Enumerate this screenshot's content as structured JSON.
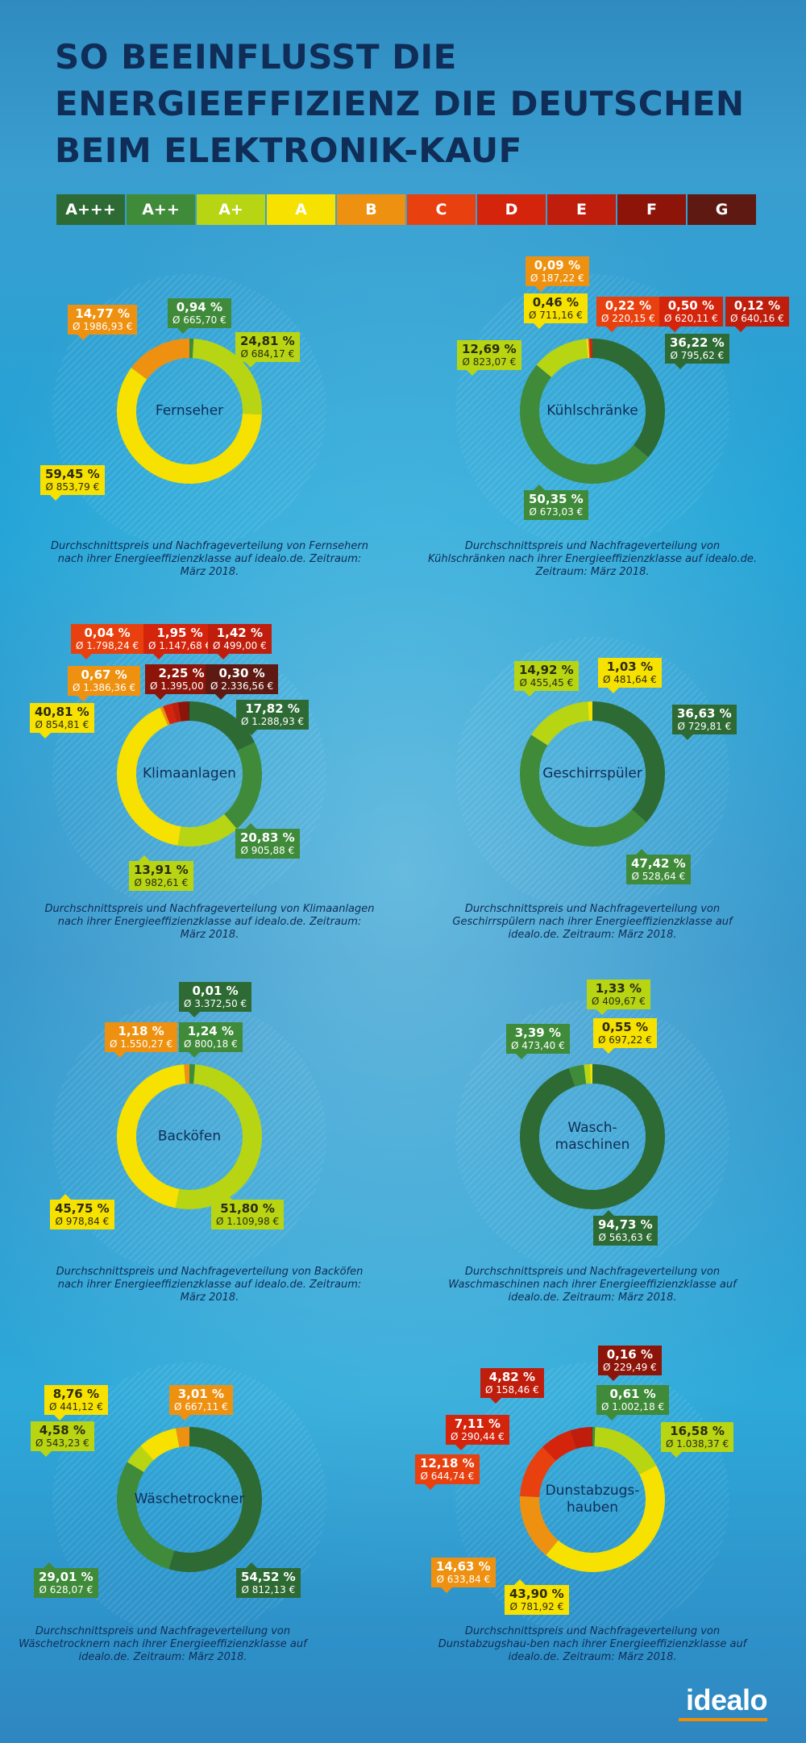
{
  "title_lines": [
    "SO BEEINFLUSST DIE",
    "ENERGIEEFFIZIENZ DIE DEUTSCHEN",
    "BEIM ELEKTRONIK-KAUF"
  ],
  "class_colors": {
    "A+++": "#2e6b34",
    "A++": "#3f8b3a",
    "A+": "#b7d513",
    "A": "#f6e100",
    "B": "#ef9110",
    "C": "#e8410f",
    "D": "#d5240c",
    "E": "#c01e0c",
    "F": "#8d1409",
    "G": "#5e1a12"
  },
  "scale": [
    "A+++",
    "A++",
    "A+",
    "A",
    "B",
    "C",
    "D",
    "E",
    "F",
    "G"
  ],
  "logo": "idealo",
  "chart_data": [
    {
      "type": "pie",
      "title": "Fernseher",
      "caption": "Durchschnittspreis und Nachfrageverteilung von Fernsehern nach ihrer Energieeffizienzklasse auf idealo.de. Zeitraum: März 2018.",
      "slices": [
        {
          "class": "A++",
          "share": "0,94 %",
          "value": 0.94,
          "price": "Ø 665,70 €"
        },
        {
          "class": "A+",
          "share": "24,81 %",
          "value": 24.81,
          "price": "Ø 684,17 €"
        },
        {
          "class": "A",
          "share": "59,45 %",
          "value": 59.45,
          "price": "Ø 853,79 €"
        },
        {
          "class": "B",
          "share": "14,77 %",
          "value": 14.77,
          "price": "Ø 1986,93 €"
        }
      ]
    },
    {
      "type": "pie",
      "title": "Kühlschränke",
      "caption": "Durchschnittspreis und Nachfrageverteilung von Kühlschränken nach ihrer Energieeffizienzklasse auf idealo.de. Zeitraum: März 2018.",
      "slices": [
        {
          "class": "A+++",
          "share": "36,22 %",
          "value": 36.22,
          "price": "Ø 795,62 €"
        },
        {
          "class": "A++",
          "share": "50,35 %",
          "value": 50.35,
          "price": "Ø 673,03 €"
        },
        {
          "class": "A+",
          "share": "12,69 %",
          "value": 12.69,
          "price": "Ø 823,07 €"
        },
        {
          "class": "A",
          "share": "0,46 %",
          "value": 0.46,
          "price": "Ø 711,16 €"
        },
        {
          "class": "B",
          "share": "0,09 %",
          "value": 0.09,
          "price": "Ø 187,22 €"
        },
        {
          "class": "C",
          "share": "0,22 %",
          "value": 0.22,
          "price": "Ø 220,15 €"
        },
        {
          "class": "D",
          "share": "0,50 %",
          "value": 0.5,
          "price": "Ø 620,11 €"
        },
        {
          "class": "E",
          "share": "0,12 %",
          "value": 0.12,
          "price": "Ø 640,16 €"
        }
      ]
    },
    {
      "type": "pie",
      "title": "Klimaanlagen",
      "caption": "Durchschnittspreis und Nachfrageverteilung von Klimaanlagen nach ihrer Energieeffizienzklasse auf idealo.de. Zeitraum: März 2018.",
      "slices": [
        {
          "class": "A+++",
          "share": "17,82 %",
          "value": 17.82,
          "price": "Ø 1.288,93 €"
        },
        {
          "class": "A++",
          "share": "20,83 %",
          "value": 20.83,
          "price": "Ø 905,88 €"
        },
        {
          "class": "A+",
          "share": "13,91 %",
          "value": 13.91,
          "price": "Ø 982,61 €"
        },
        {
          "class": "A",
          "share": "40,81 %",
          "value": 40.81,
          "price": "Ø 854,81 €"
        },
        {
          "class": "B",
          "share": "0,67 %",
          "value": 0.67,
          "price": "Ø 1.386,36 €"
        },
        {
          "class": "C",
          "share": "0,04 %",
          "value": 0.04,
          "price": "Ø 1.798,24 €"
        },
        {
          "class": "D",
          "share": "1,95 %",
          "value": 1.95,
          "price": "Ø 1.147,68 €"
        },
        {
          "class": "E",
          "share": "1,42 %",
          "value": 1.42,
          "price": "Ø 499,00 €"
        },
        {
          "class": "F",
          "share": "2,25 %",
          "value": 2.25,
          "price": "Ø 1.395,00 €"
        },
        {
          "class": "G",
          "share": "0,30 %",
          "value": 0.3,
          "price": "Ø 2.336,56 €"
        }
      ]
    },
    {
      "type": "pie",
      "title": "Geschirrspüler",
      "caption": "Durchschnittspreis und Nachfrageverteilung von Geschirrspülern nach ihrer Energieeffizienzklasse auf idealo.de. Zeitraum: März 2018.",
      "slices": [
        {
          "class": "A+++",
          "share": "36,63 %",
          "value": 36.63,
          "price": "Ø 729,81 €"
        },
        {
          "class": "A++",
          "share": "47,42 %",
          "value": 47.42,
          "price": "Ø 528,64 €"
        },
        {
          "class": "A+",
          "share": "14,92 %",
          "value": 14.92,
          "price": "Ø 455,45 €"
        },
        {
          "class": "A",
          "share": "1,03 %",
          "value": 1.03,
          "price": "Ø 481,64 €"
        }
      ]
    },
    {
      "type": "pie",
      "title": "Backöfen",
      "caption": "Durchschnittspreis und Nachfrageverteilung von Backöfen nach ihrer Energieeffizienzklasse auf idealo.de. Zeitraum: März 2018.",
      "slices": [
        {
          "class": "A+++",
          "share": "0,01 %",
          "value": 0.01,
          "price": "Ø 3.372,50 €"
        },
        {
          "class": "A++",
          "share": "1,24 %",
          "value": 1.24,
          "price": "Ø 800,18 €"
        },
        {
          "class": "A+",
          "share": "51,80 %",
          "value": 51.8,
          "price": "Ø 1.109,98 €"
        },
        {
          "class": "A",
          "share": "45,75 %",
          "value": 45.75,
          "price": "Ø 978,84 €"
        },
        {
          "class": "B",
          "share": "1,18 %",
          "value": 1.18,
          "price": "Ø 1.550,27 €"
        }
      ]
    },
    {
      "type": "pie",
      "title": "Wasch-\nmaschinen",
      "caption": "Durchschnittspreis und Nachfrageverteilung von Waschmaschinen nach ihrer Energieeffizienzklasse auf idealo.de. Zeitraum: März 2018.",
      "slices": [
        {
          "class": "A+++",
          "share": "94,73 %",
          "value": 94.73,
          "price": "Ø 563,63 €"
        },
        {
          "class": "A++",
          "share": "3,39 %",
          "value": 3.39,
          "price": "Ø 473,40 €"
        },
        {
          "class": "A+",
          "share": "1,33 %",
          "value": 1.33,
          "price": "Ø 409,67 €"
        },
        {
          "class": "A",
          "share": "0,55 %",
          "value": 0.55,
          "price": "Ø 697,22 €"
        }
      ]
    },
    {
      "type": "pie",
      "title": "Wäschetrockner",
      "caption": "Durchschnittspreis und Nachfrageverteilung von Wäschetrocknern nach ihrer Energieeffizienzklasse auf idealo.de. Zeitraum: März 2018.",
      "slices": [
        {
          "class": "A+++",
          "share": "54,52 %",
          "value": 54.52,
          "price": "Ø 812,13 €"
        },
        {
          "class": "A++",
          "share": "29,01 %",
          "value": 29.01,
          "price": "Ø 628,07 €"
        },
        {
          "class": "A+",
          "share": "4,58 %",
          "value": 4.58,
          "price": "Ø 543,23 €"
        },
        {
          "class": "A",
          "share": "8,76 %",
          "value": 8.76,
          "price": "Ø 441,12 €"
        },
        {
          "class": "B",
          "share": "3,01 %",
          "value": 3.01,
          "price": "Ø 667,11 €"
        }
      ]
    },
    {
      "type": "pie",
      "title": "Dunstabzugs-\nhauben",
      "caption": "Durchschnittspreis und Nachfrageverteilung von Dunstabzugshau-ben nach ihrer Energieeffizienzklasse auf idealo.de. Zeitraum: März 2018.",
      "slices": [
        {
          "class": "A++",
          "share": "0,61 %",
          "value": 0.61,
          "price": "Ø 1.002,18 €"
        },
        {
          "class": "A+",
          "share": "16,58 %",
          "value": 16.58,
          "price": "Ø 1.038,37 €"
        },
        {
          "class": "A",
          "share": "43,90 %",
          "value": 43.9,
          "price": "Ø 781,92 €"
        },
        {
          "class": "B",
          "share": "14,63 %",
          "value": 14.63,
          "price": "Ø 633,84 €"
        },
        {
          "class": "C",
          "share": "12,18 %",
          "value": 12.18,
          "price": "Ø 644,74 €"
        },
        {
          "class": "D",
          "share": "7,11 %",
          "value": 7.11,
          "price": "Ø 290,44 €"
        },
        {
          "class": "E",
          "share": "4,82 %",
          "value": 4.82,
          "price": "Ø 158,46 €"
        },
        {
          "class": "F",
          "share": "0,16 %",
          "value": 0.16,
          "price": "Ø 229,49 €"
        }
      ]
    }
  ]
}
